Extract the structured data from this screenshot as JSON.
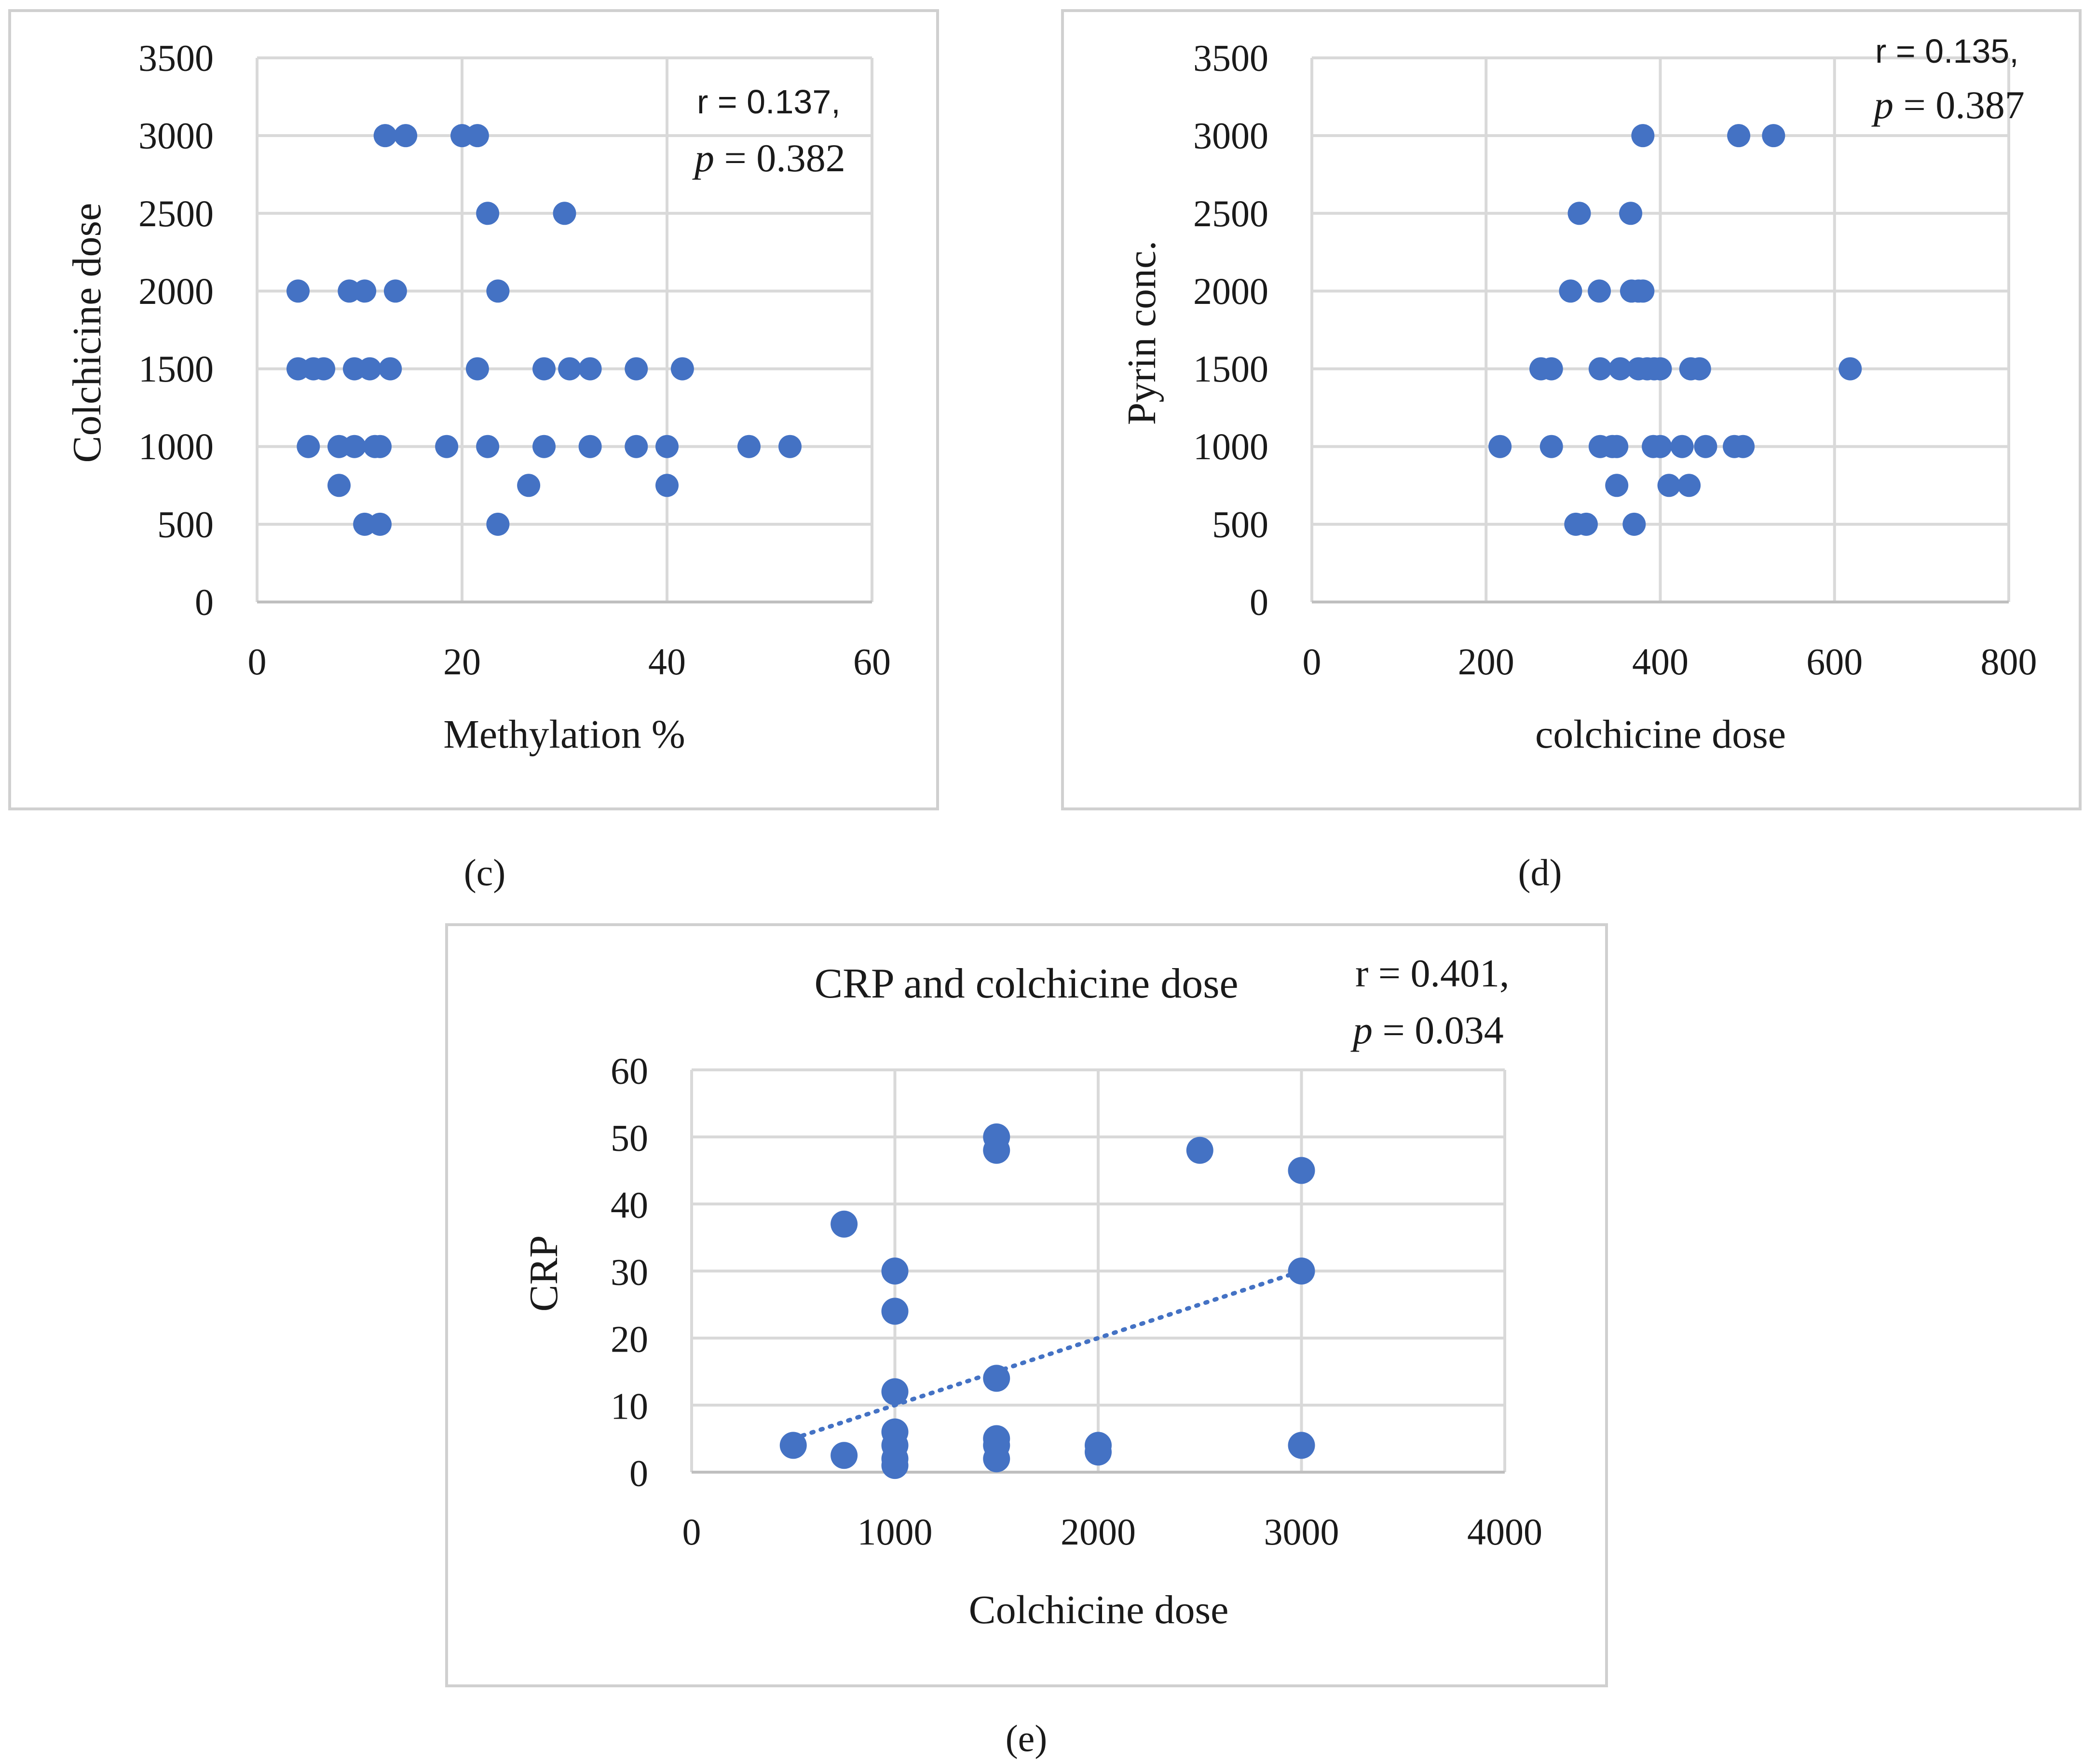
{
  "chart_data": [
    {
      "id": "c",
      "type": "scatter",
      "panel_label": "(c)",
      "title": "",
      "xlabel": "Methylation %",
      "ylabel": "Colchicine dose",
      "xlim": [
        0,
        60
      ],
      "ylim": [
        0,
        3500
      ],
      "xticks": [
        "0",
        "20",
        "40",
        "60"
      ],
      "yticks": [
        "0",
        "500",
        "1000",
        "1500",
        "2000",
        "2500",
        "3000",
        "3500"
      ],
      "stat_r": "r = 0.137,",
      "stat_p_symbol": "p",
      "stat_p_value": " = 0.382",
      "grid": true,
      "points": [
        [
          12.5,
          3000
        ],
        [
          14.5,
          3000
        ],
        [
          20,
          3000
        ],
        [
          21.5,
          3000
        ],
        [
          22.5,
          2500
        ],
        [
          30,
          2500
        ],
        [
          4,
          2000
        ],
        [
          9,
          2000
        ],
        [
          10.5,
          2000
        ],
        [
          13.5,
          2000
        ],
        [
          23.5,
          2000
        ],
        [
          4,
          1500
        ],
        [
          5.5,
          1500
        ],
        [
          6.5,
          1500
        ],
        [
          9.5,
          1500
        ],
        [
          11,
          1500
        ],
        [
          13,
          1500
        ],
        [
          21.5,
          1500
        ],
        [
          28,
          1500
        ],
        [
          30.5,
          1500
        ],
        [
          32.5,
          1500
        ],
        [
          37,
          1500
        ],
        [
          41.5,
          1500
        ],
        [
          5,
          1000
        ],
        [
          8,
          1000
        ],
        [
          9.5,
          1000
        ],
        [
          11.5,
          1000
        ],
        [
          12,
          1000
        ],
        [
          18.5,
          1000
        ],
        [
          22.5,
          1000
        ],
        [
          28,
          1000
        ],
        [
          32.5,
          1000
        ],
        [
          37,
          1000
        ],
        [
          40,
          1000
        ],
        [
          48,
          1000
        ],
        [
          52,
          1000
        ],
        [
          8,
          750
        ],
        [
          26.5,
          750
        ],
        [
          40,
          750
        ],
        [
          10.5,
          500
        ],
        [
          12,
          500
        ],
        [
          23.5,
          500
        ]
      ]
    },
    {
      "id": "d",
      "type": "scatter",
      "panel_label": "(d)",
      "title": "",
      "xlabel": "colchicine dose",
      "ylabel": "Pyrin conc.",
      "xlim": [
        0,
        800
      ],
      "ylim": [
        0,
        3500
      ],
      "xticks": [
        "0",
        "200",
        "400",
        "600",
        "800"
      ],
      "yticks": [
        "0",
        "500",
        "1000",
        "1500",
        "2000",
        "2500",
        "3000",
        "3500"
      ],
      "stat_r": "r = 0.135,",
      "stat_p_symbol": "p",
      "stat_p_value": " = 0.387",
      "grid": true,
      "points": [
        [
          380,
          3000
        ],
        [
          490,
          3000
        ],
        [
          530,
          3000
        ],
        [
          307,
          2500
        ],
        [
          366,
          2500
        ],
        [
          297,
          2000
        ],
        [
          330,
          2000
        ],
        [
          367,
          2000
        ],
        [
          375,
          2000
        ],
        [
          380,
          2000
        ],
        [
          263,
          1500
        ],
        [
          275,
          1500
        ],
        [
          331,
          1500
        ],
        [
          354,
          1500
        ],
        [
          375,
          1500
        ],
        [
          385,
          1500
        ],
        [
          393,
          1500
        ],
        [
          400,
          1500
        ],
        [
          435,
          1500
        ],
        [
          445,
          1500
        ],
        [
          618,
          1500
        ],
        [
          216,
          1000
        ],
        [
          275,
          1000
        ],
        [
          331,
          1000
        ],
        [
          345,
          1000
        ],
        [
          350,
          1000
        ],
        [
          392,
          1000
        ],
        [
          400,
          1000
        ],
        [
          425,
          1000
        ],
        [
          452,
          1000
        ],
        [
          485,
          1000
        ],
        [
          495,
          1000
        ],
        [
          350,
          750
        ],
        [
          410,
          750
        ],
        [
          433,
          750
        ],
        [
          303,
          500
        ],
        [
          315,
          500
        ],
        [
          370,
          500
        ]
      ]
    },
    {
      "id": "e",
      "type": "scatter",
      "panel_label": "(e)",
      "title": "CRP and colchicine dose",
      "xlabel": "Colchicine dose",
      "ylabel": "CRP",
      "xlim": [
        0,
        4000
      ],
      "ylim": [
        0,
        60
      ],
      "xticks": [
        "0",
        "1000",
        "2000",
        "3000",
        "4000"
      ],
      "yticks": [
        "0",
        "10",
        "20",
        "30",
        "40",
        "50",
        "60"
      ],
      "stat_r": "r = 0.401,",
      "stat_p_symbol": "p",
      "stat_p_value": " = 0.034",
      "grid": true,
      "trendline": {
        "style": "dotted",
        "from": [
          500,
          5
        ],
        "to": [
          3000,
          30
        ]
      },
      "points": [
        [
          500,
          4
        ],
        [
          750,
          37
        ],
        [
          750,
          2.5
        ],
        [
          1000,
          30
        ],
        [
          1000,
          24
        ],
        [
          1000,
          12
        ],
        [
          1000,
          6
        ],
        [
          1000,
          4
        ],
        [
          1000,
          2
        ],
        [
          1000,
          1
        ],
        [
          1500,
          50
        ],
        [
          1500,
          48
        ],
        [
          1500,
          14
        ],
        [
          1500,
          5
        ],
        [
          1500,
          4
        ],
        [
          1500,
          2
        ],
        [
          2000,
          4
        ],
        [
          2000,
          3
        ],
        [
          2500,
          48
        ],
        [
          3000,
          45
        ],
        [
          3000,
          30
        ],
        [
          3000,
          4
        ]
      ]
    }
  ]
}
